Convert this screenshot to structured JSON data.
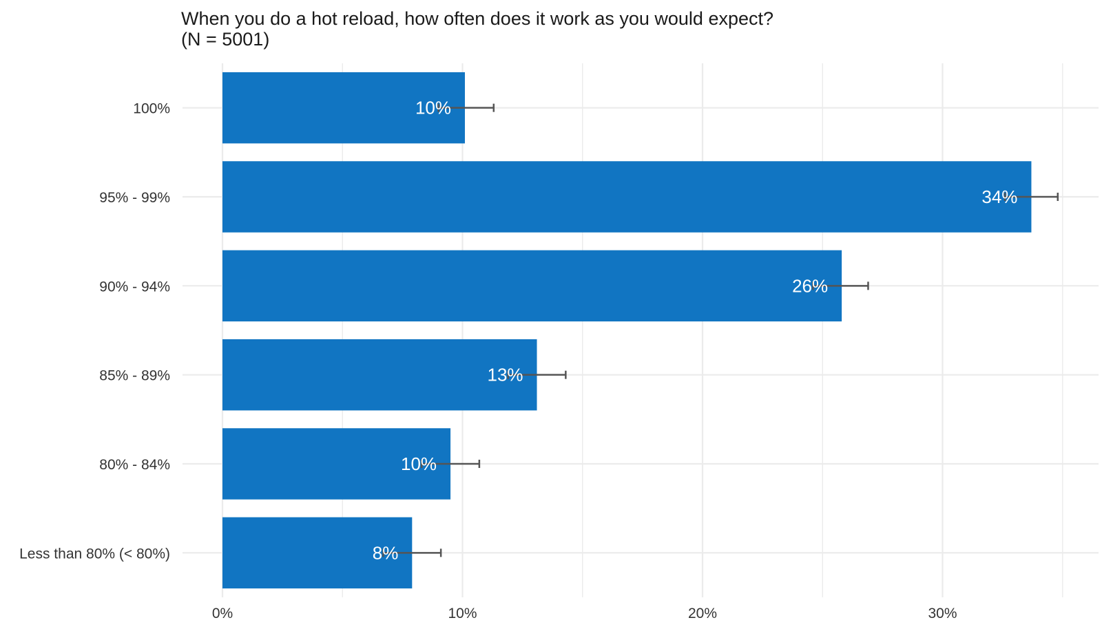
{
  "chart_data": {
    "type": "bar",
    "orientation": "horizontal",
    "title": "When you do a hot reload, how often does it work as you would expect?",
    "subtitle": "(N = 5001)",
    "categories": [
      "100%",
      "95% - 99%",
      "90% - 94%",
      "85% - 89%",
      "80% - 84%",
      "Less than 80% (< 80%)"
    ],
    "values": [
      10.1,
      33.7,
      25.8,
      13.1,
      9.5,
      7.9
    ],
    "data_labels": [
      "10%",
      "34%",
      "26%",
      "13%",
      "10%",
      "8%"
    ],
    "error_upper": [
      11.3,
      34.8,
      26.9,
      14.3,
      10.7,
      9.1
    ],
    "error_lower": [
      9.0,
      32.6,
      24.6,
      11.9,
      8.3,
      6.7
    ],
    "xlim": [
      0,
      36
    ],
    "x_ticks": [
      0,
      10,
      20,
      30
    ],
    "x_tick_labels": [
      "0%",
      "10%",
      "20%",
      "30%"
    ],
    "grid": true,
    "bar_color": "#1175c2",
    "error_bar_color": "#555555",
    "grid_color": "#ebebeb"
  }
}
